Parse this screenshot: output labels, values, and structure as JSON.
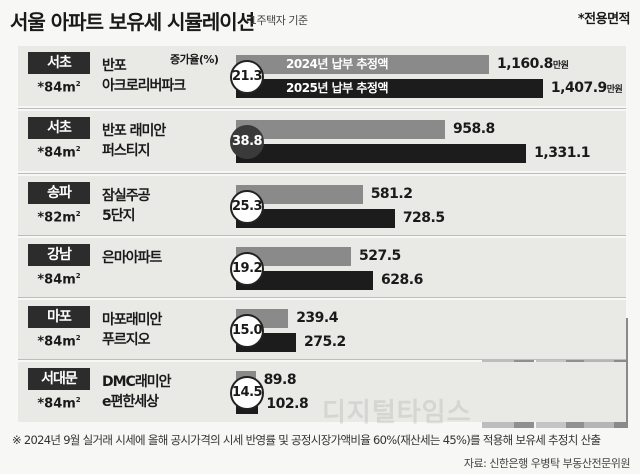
{
  "header": {
    "title": "서울 아파트 보유세 시뮬레이션",
    "subtitle": "1주택자 기준",
    "note": "*전용면적"
  },
  "legend": {
    "rate_label": "증가율(%)",
    "series_2024": "2024년 납부 추정액",
    "series_2025": "2025년 납부 추정액",
    "unit": "만원"
  },
  "rows": [
    {
      "region": "서초",
      "area": "*84m",
      "name": "반포\n아크로리버파크",
      "v2024": "1,160.8",
      "v2025": "1,407.9",
      "rate": "21.3"
    },
    {
      "region": "서초",
      "area": "*84m",
      "name": "반포 래미안\n퍼스티지",
      "v2024": "958.8",
      "v2025": "1,331.1",
      "rate": "38.8"
    },
    {
      "region": "송파",
      "area": "*82m",
      "name": "잠실주공\n5단지",
      "v2024": "581.2",
      "v2025": "728.5",
      "rate": "25.3"
    },
    {
      "region": "강남",
      "area": "*84m",
      "name": "은마아파트",
      "v2024": "527.5",
      "v2025": "628.6",
      "rate": "19.2"
    },
    {
      "region": "마포",
      "area": "*84m",
      "name": "마포래미안\n푸르지오",
      "v2024": "239.4",
      "v2025": "275.2",
      "rate": "15.0"
    },
    {
      "region": "서대문",
      "area": "*84m",
      "name": "DMC래미안\ne편한세상",
      "v2024": "89.8",
      "v2025": "102.8",
      "rate": "14.5"
    }
  ],
  "footnote": "※ 2024년 9월 실거래 시세에 올해 공시가격의 시세 반영률 및 공정시장가액비율 60%(재산세는 45%)를 적용해 보유세 추정치 산출",
  "source": "자료: 신한은행 우병탁 부동산전문위원",
  "watermark": "디지털타임스",
  "chart_data": {
    "type": "bar",
    "title": "서울 아파트 보유세 시뮬레이션",
    "subtitle": "1주택자 기준",
    "unit": "만원",
    "categories": [
      "반포 아크로리버파크",
      "반포 래미안 퍼스티지",
      "잠실주공 5단지",
      "은마아파트",
      "마포래미안 푸르지오",
      "DMC래미안 e편한세상"
    ],
    "series": [
      {
        "name": "2024년 납부 추정액",
        "values": [
          1160.8,
          958.8,
          581.2,
          527.5,
          239.4,
          89.8
        ],
        "color": "#8a8a8a"
      },
      {
        "name": "2025년 납부 추정액",
        "values": [
          1407.9,
          1331.1,
          728.5,
          628.6,
          275.2,
          102.8
        ],
        "color": "#1c1c1c"
      }
    ],
    "rates": [
      21.3,
      38.8,
      25.3,
      19.2,
      15.0,
      14.5
    ],
    "rate_label": "증가율(%)",
    "orientation": "horizontal"
  }
}
